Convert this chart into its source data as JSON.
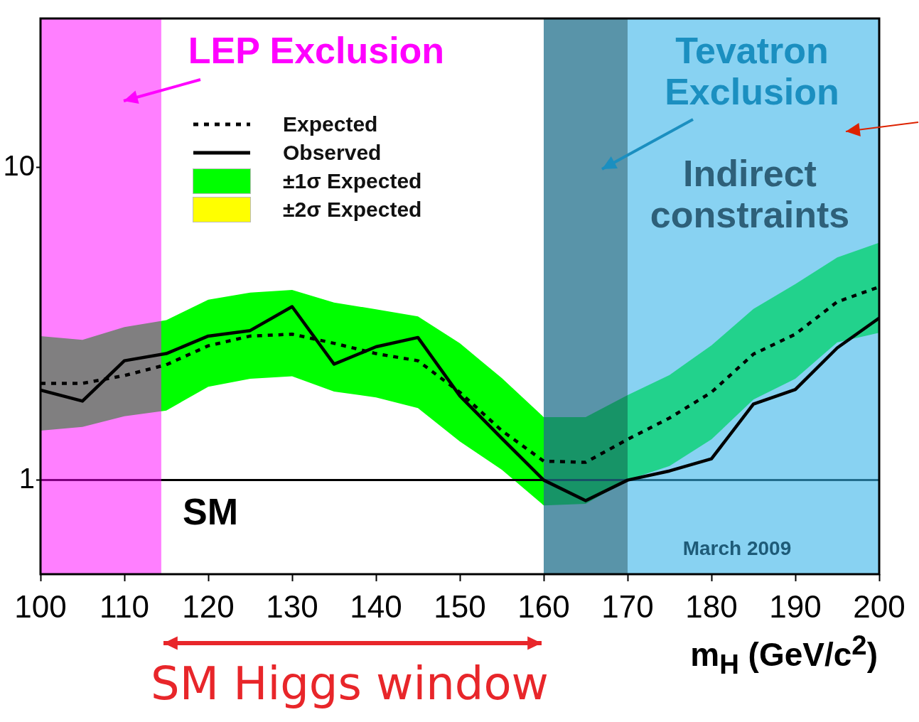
{
  "chart_data": {
    "type": "line",
    "xlabel": "m$_{H}$  (GeV/c$^{2}$)",
    "x": [
      100,
      105,
      110,
      115,
      120,
      125,
      130,
      135,
      140,
      145,
      150,
      155,
      160,
      165,
      170,
      175,
      180,
      185,
      190,
      195,
      200
    ],
    "series": [
      {
        "name": "Expected",
        "color": "#000000",
        "line_style": "dotted",
        "values": [
          2.04,
          2.04,
          2.16,
          2.34,
          2.69,
          2.89,
          2.93,
          2.74,
          2.54,
          2.41,
          1.91,
          1.44,
          1.15,
          1.14,
          1.35,
          1.58,
          1.91,
          2.53,
          2.93,
          3.72,
          4.15
        ]
      },
      {
        "name": "Observed",
        "color": "#000000",
        "line_style": "solid",
        "values": [
          1.94,
          1.79,
          2.41,
          2.54,
          2.89,
          3.01,
          3.59,
          2.35,
          2.67,
          2.86,
          1.86,
          1.36,
          1.0,
          0.86,
          1.0,
          1.07,
          1.17,
          1.75,
          1.95,
          2.65,
          3.3
        ]
      },
      {
        "name": "±1σ Expected",
        "type": "area",
        "color": "#00ff00",
        "values": [
          null,
          null,
          null,
          null,
          null,
          null,
          null,
          null,
          null,
          null,
          null,
          null,
          null,
          null,
          null,
          null,
          null,
          null,
          null,
          null,
          null
        ],
        "lower": [
          1.44,
          1.48,
          1.6,
          1.67,
          1.99,
          2.11,
          2.15,
          1.92,
          1.84,
          1.7,
          1.33,
          1.08,
          0.83,
          0.84,
          1.0,
          1.11,
          1.35,
          1.81,
          2.11,
          2.76,
          2.96
        ],
        "upper": [
          2.89,
          2.81,
          3.09,
          3.25,
          3.78,
          3.98,
          4.06,
          3.7,
          3.52,
          3.34,
          2.74,
          2.12,
          1.59,
          1.59,
          1.87,
          2.17,
          2.7,
          3.53,
          4.24,
          5.16,
          5.75
        ]
      },
      {
        "name": "±2σ Expected",
        "type": "area",
        "color": "#ffff00",
        "values": [
          null,
          null,
          null,
          null,
          null,
          null,
          null,
          null,
          null,
          null,
          null,
          null,
          null,
          null,
          null,
          null,
          null,
          null,
          null,
          null,
          null
        ]
      }
    ],
    "xlim": [
      100,
      200
    ],
    "xticks": [
      100,
      110,
      120,
      130,
      140,
      150,
      160,
      170,
      180,
      190,
      200
    ],
    "log": true,
    "ylim": [
      0.5,
      30
    ],
    "yticks": [
      1,
      10
    ],
    "grid": false,
    "legend": "top left",
    "marker": "none",
    "ref_lines": [
      {
        "axis": "y",
        "value": 1,
        "label": "SM",
        "color": "#000000"
      }
    ],
    "bands": [
      {
        "axis": "x",
        "from": 100,
        "to": 114.4,
        "label": "LEP Exclusion",
        "color": "#ff00ff"
      },
      {
        "axis": "x",
        "from": 160,
        "to": 170,
        "label": "Tevatron Exclusion",
        "color": "#1f6f8b"
      },
      {
        "axis": "x",
        "from": 170,
        "to": 200,
        "label": "Indirect constraints",
        "color": "#39b4ea"
      }
    ],
    "annotations": [
      "SM Higgs window",
      "March 2009"
    ]
  }
}
